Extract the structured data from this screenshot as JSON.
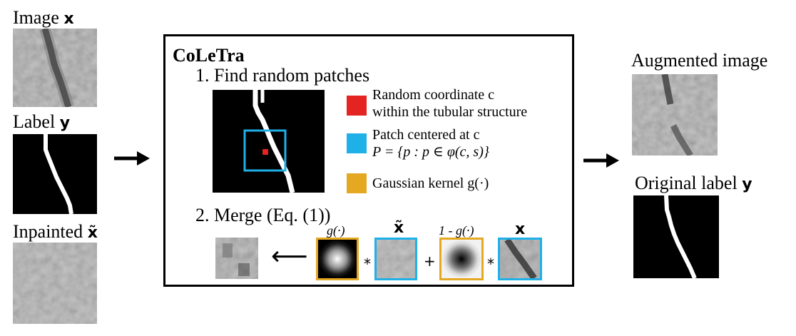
{
  "left": {
    "image_label": "Image",
    "image_symbol": "x",
    "label_label": "Label",
    "label_symbol": "y",
    "inpainted_label": "Inpainted",
    "inpainted_symbol": "x̃"
  },
  "box": {
    "title": "CoLeTra",
    "step1": "1. Find random patches",
    "step2": "2. Merge (Eq. (1))"
  },
  "legend": {
    "red_line1": "Random coordinate c",
    "red_line2": "within the tubular structure",
    "blue_line1": "Patch centered at c",
    "blue_line2": "P = {p : p ∈ φ(c, s)}",
    "yellow_line": "Gaussian kernel g(·)",
    "red_color": "#e32420",
    "blue_color": "#1fb0e8",
    "yellow_color": "#e5a823"
  },
  "merge": {
    "arrow": "⟵",
    "g_label": "g(·)",
    "xtilde_label": "x̃",
    "one_minus_g_label": "1 - g(·)",
    "x_label": "x",
    "times1": "*",
    "plus": "+",
    "times2": "*"
  },
  "right": {
    "augmented_label": "Augmented image",
    "original_label": "Original label",
    "original_symbol": "y"
  }
}
